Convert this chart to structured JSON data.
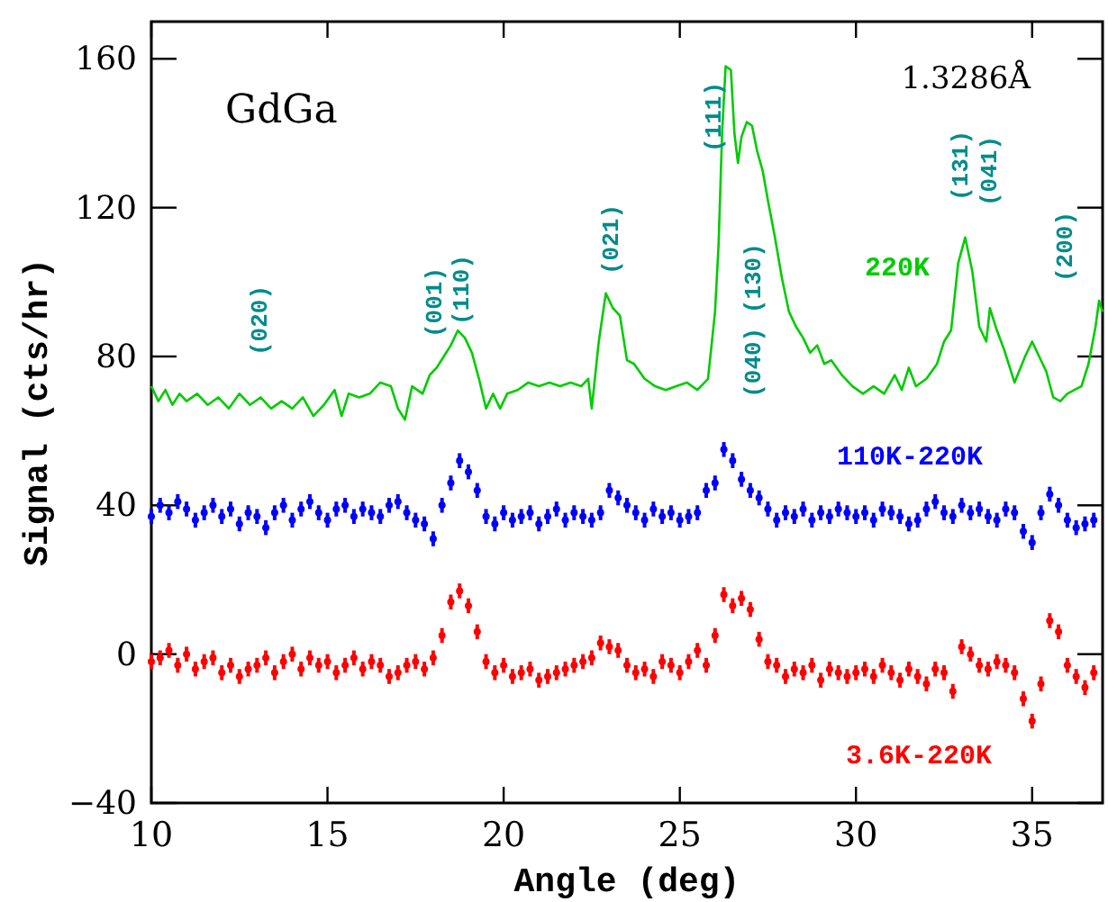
{
  "chart_data": {
    "type": "line",
    "xlabel": "Angle (deg)",
    "ylabel": "Signal (cts/hr)",
    "xlim": [
      10,
      37
    ],
    "xticks": [
      10,
      15,
      20,
      25,
      30,
      35
    ],
    "ylim": [
      -40,
      170
    ],
    "yticks": [
      -40,
      0,
      40,
      80,
      120,
      160
    ],
    "grid": false,
    "legend": false,
    "annotations": [
      "GdGa",
      "1.3286Å",
      "(020)",
      "(001)",
      "(110)",
      "(021)",
      "(111)",
      "(040) (130)",
      "(131)",
      "(041)",
      "(200)"
    ],
    "series": [
      {
        "name": "220K",
        "marker": "none",
        "color": "#00cc00",
        "x": [
          10.0,
          10.2,
          10.4,
          10.6,
          10.8,
          11.0,
          11.3,
          11.6,
          11.9,
          12.2,
          12.5,
          12.8,
          13.1,
          13.4,
          13.7,
          14.0,
          14.3,
          14.6,
          14.9,
          15.2,
          15.4,
          15.6,
          15.9,
          16.2,
          16.5,
          16.8,
          17.0,
          17.2,
          17.4,
          17.7,
          17.9,
          18.1,
          18.3,
          18.5,
          18.7,
          18.9,
          19.1,
          19.3,
          19.5,
          19.7,
          19.9,
          20.1,
          20.4,
          20.7,
          21.0,
          21.3,
          21.6,
          21.9,
          22.2,
          22.4,
          22.5,
          22.7,
          22.9,
          23.1,
          23.3,
          23.5,
          23.7,
          24.0,
          24.3,
          24.6,
          24.9,
          25.2,
          25.5,
          25.8,
          26.0,
          26.1,
          26.2,
          26.3,
          26.45,
          26.55,
          26.65,
          26.75,
          26.9,
          27.05,
          27.2,
          27.35,
          27.5,
          27.7,
          27.9,
          28.1,
          28.3,
          28.5,
          28.7,
          28.9,
          29.1,
          29.3,
          29.6,
          29.9,
          30.2,
          30.5,
          30.8,
          31.1,
          31.3,
          31.5,
          31.7,
          32.0,
          32.3,
          32.5,
          32.7,
          32.9,
          33.1,
          33.3,
          33.5,
          33.7,
          33.8,
          34.0,
          34.2,
          34.5,
          34.8,
          35.0,
          35.2,
          35.4,
          35.6,
          35.8,
          36.0,
          36.2,
          36.4,
          36.6,
          36.8,
          36.9,
          37.0
        ],
        "values": [
          72,
          68,
          71,
          67,
          70,
          68,
          70,
          67,
          69,
          66,
          70,
          67,
          69,
          66,
          68,
          66,
          69,
          64,
          67,
          71,
          64,
          70,
          69,
          70,
          73,
          72,
          66,
          63,
          72,
          70,
          75,
          77,
          80,
          83,
          87,
          85,
          81,
          74,
          66,
          70,
          66,
          70,
          71,
          73,
          72,
          73,
          72,
          73,
          72,
          74,
          66,
          84,
          97,
          93,
          91,
          79,
          78,
          74,
          72,
          71,
          72,
          73,
          71,
          74,
          92,
          110,
          140,
          158,
          157,
          140,
          132,
          139,
          143,
          142,
          135,
          130,
          122,
          112,
          101,
          92,
          88,
          85,
          81,
          83,
          78,
          79,
          75,
          72,
          70,
          72,
          70,
          75,
          71,
          77,
          72,
          74,
          78,
          84,
          87,
          105,
          112,
          103,
          88,
          84,
          93,
          87,
          82,
          73,
          80,
          84,
          80,
          76,
          69,
          68,
          70,
          71,
          72,
          78,
          88,
          95,
          92
        ]
      },
      {
        "name": "110K-220K",
        "type": "scatter",
        "color": "#0000ff",
        "values": [
          37,
          40,
          38,
          41,
          39,
          36,
          38,
          40,
          37,
          39,
          35,
          38,
          37,
          34,
          38,
          40,
          36,
          39,
          41,
          38,
          36,
          39,
          40,
          37,
          39,
          38,
          37,
          40,
          41,
          38,
          36,
          35,
          31,
          40,
          46,
          52,
          49,
          44,
          37,
          35,
          38,
          36,
          37,
          38,
          35,
          37,
          39,
          36,
          38,
          37,
          36,
          38,
          44,
          42,
          40,
          38,
          36,
          39,
          37,
          38,
          36,
          37,
          38,
          44,
          46,
          55,
          52,
          47,
          44,
          42,
          39,
          36,
          38,
          37,
          39,
          36,
          38,
          37,
          39,
          38,
          37,
          38,
          36,
          39,
          38,
          37,
          35,
          36,
          39,
          41,
          38,
          37,
          40,
          38,
          39,
          37,
          36,
          39,
          38,
          33,
          30,
          38,
          43,
          40,
          36,
          34,
          35,
          36
        ],
        "errors": [
          2,
          2,
          2,
          2,
          2,
          2,
          2,
          2,
          2,
          2,
          2,
          2,
          2,
          2,
          2,
          2,
          2,
          2,
          2,
          2,
          2,
          2,
          2,
          2,
          2,
          2,
          2,
          2,
          2,
          2,
          2,
          2,
          2,
          2,
          2,
          2,
          2,
          2,
          2,
          2,
          2,
          2,
          2,
          2,
          2,
          2,
          2,
          2,
          2,
          2,
          2,
          2,
          2,
          2,
          2,
          2,
          2,
          2,
          2,
          2,
          2,
          2,
          2,
          2,
          2,
          2,
          2,
          2,
          2,
          2,
          2,
          2,
          2,
          2,
          2,
          2,
          2,
          2,
          2,
          2,
          2,
          2,
          2,
          2,
          2,
          2,
          2,
          2,
          2,
          2,
          2,
          2,
          2,
          2,
          2,
          2,
          2,
          2,
          2,
          2,
          2,
          2,
          2,
          2,
          2,
          2,
          2,
          2
        ]
      },
      {
        "name": "3.6K-220K",
        "type": "scatter",
        "color": "#ff0000",
        "values": [
          -2,
          -1,
          1,
          -3,
          0,
          -4,
          -2,
          -1,
          -5,
          -3,
          -6,
          -4,
          -3,
          -1,
          -5,
          -2,
          0,
          -4,
          -1,
          -3,
          -2,
          -5,
          -3,
          -1,
          -4,
          -2,
          -3,
          -6,
          -5,
          -3,
          -2,
          -4,
          -1,
          5,
          14,
          17,
          13,
          6,
          -2,
          -5,
          -3,
          -6,
          -5,
          -4,
          -7,
          -6,
          -5,
          -4,
          -3,
          -2,
          -1,
          3,
          2,
          1,
          -3,
          -5,
          -4,
          -6,
          -2,
          -3,
          -5,
          -2,
          1,
          -3,
          5,
          16,
          13,
          15,
          12,
          4,
          -2,
          -3,
          -6,
          -4,
          -5,
          -3,
          -7,
          -4,
          -5,
          -6,
          -5,
          -4,
          -6,
          -3,
          -5,
          -7,
          -4,
          -6,
          -8,
          -4,
          -5,
          -10,
          2,
          0,
          -3,
          -4,
          -2,
          -3,
          -5,
          -12,
          -18,
          -8,
          9,
          6,
          -3,
          -6,
          -9,
          -5
        ],
        "errors": [
          2,
          2,
          2,
          2,
          2,
          2,
          2,
          2,
          2,
          2,
          2,
          2,
          2,
          2,
          2,
          2,
          2,
          2,
          2,
          2,
          2,
          2,
          2,
          2,
          2,
          2,
          2,
          2,
          2,
          2,
          2,
          2,
          2,
          2,
          2,
          2,
          2,
          2,
          2,
          2,
          2,
          2,
          2,
          2,
          2,
          2,
          2,
          2,
          2,
          2,
          2,
          2,
          2,
          2,
          2,
          2,
          2,
          2,
          2,
          2,
          2,
          2,
          2,
          2,
          2,
          2,
          2,
          2,
          2,
          2,
          2,
          2,
          2,
          2,
          2,
          2,
          2,
          2,
          2,
          2,
          2,
          2,
          2,
          2,
          2,
          2,
          2,
          2,
          2,
          2,
          2,
          2,
          2,
          2,
          2,
          2,
          2,
          2,
          2,
          2,
          2,
          2,
          2,
          2,
          2,
          2,
          2,
          2
        ]
      }
    ],
    "x": [
      10.0,
      10.25,
      10.5,
      10.75,
      11.0,
      11.25,
      11.5,
      11.75,
      12.0,
      12.25,
      12.5,
      12.75,
      13.0,
      13.25,
      13.5,
      13.75,
      14.0,
      14.25,
      14.5,
      14.75,
      15.0,
      15.25,
      15.5,
      15.75,
      16.0,
      16.25,
      16.5,
      16.75,
      17.0,
      17.25,
      17.5,
      17.75,
      18.0,
      18.25,
      18.5,
      18.75,
      19.0,
      19.25,
      19.5,
      19.75,
      20.0,
      20.25,
      20.5,
      20.75,
      21.0,
      21.25,
      21.5,
      21.75,
      22.0,
      22.25,
      22.5,
      22.75,
      23.0,
      23.25,
      23.5,
      23.75,
      24.0,
      24.25,
      24.5,
      24.75,
      25.0,
      25.25,
      25.5,
      25.75,
      26.0,
      26.25,
      26.5,
      26.75,
      27.0,
      27.25,
      27.5,
      27.75,
      28.0,
      28.25,
      28.5,
      28.75,
      29.0,
      29.25,
      29.5,
      29.75,
      30.0,
      30.25,
      30.5,
      30.75,
      31.0,
      31.25,
      31.5,
      31.75,
      32.0,
      32.25,
      32.5,
      32.75,
      33.0,
      33.25,
      33.5,
      33.75,
      34.0,
      34.25,
      34.5,
      34.75,
      35.0,
      35.25,
      35.5,
      35.75,
      36.0,
      36.25,
      36.5,
      36.75
    ]
  }
}
